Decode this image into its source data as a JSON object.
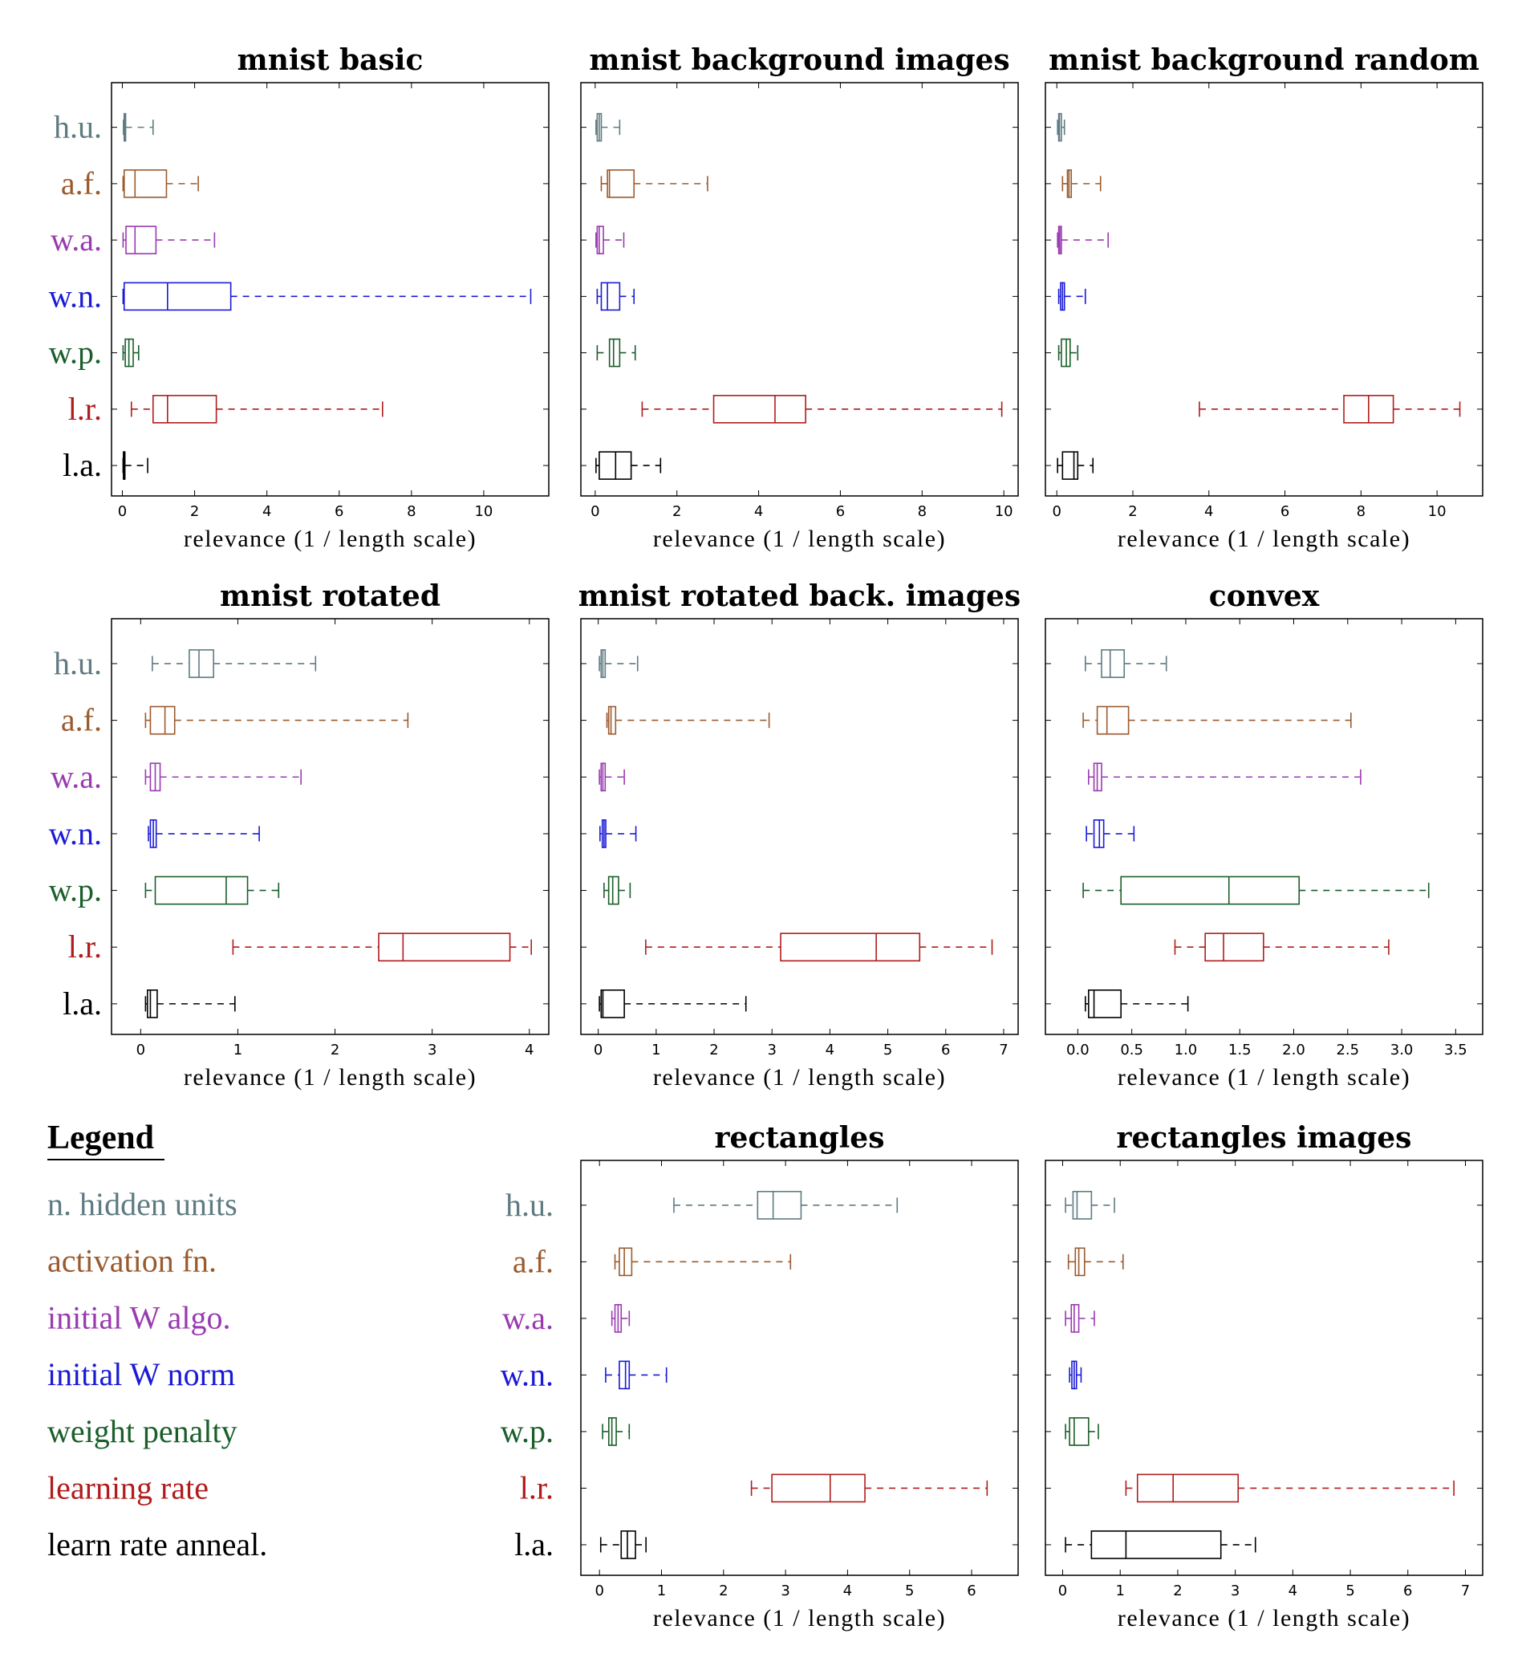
{
  "params": [
    {
      "abbr": "h.u.",
      "name": "n. hidden units",
      "color": "#5f7b82"
    },
    {
      "abbr": "a.f.",
      "name": "activation fn.",
      "color": "#9a5a2e"
    },
    {
      "abbr": "w.a.",
      "name": "initial W algo.",
      "color": "#9a3ab0"
    },
    {
      "abbr": "w.n.",
      "name": "initial W norm",
      "color": "#1a1ad6"
    },
    {
      "abbr": "w.p.",
      "name": "weight penalty",
      "color": "#1a5e2a"
    },
    {
      "abbr": "l.r.",
      "name": "learning rate",
      "color": "#b01c1c"
    },
    {
      "abbr": "l.a.",
      "name": "learn rate anneal.",
      "color": "#000000"
    }
  ],
  "legend": {
    "title": "Legend",
    "items": [
      "n. hidden units",
      "activation fn.",
      "initial W algo.",
      "initial W norm",
      "weight penalty",
      "learning rate",
      "learn rate anneal."
    ]
  },
  "chart_data": [
    {
      "type": "box",
      "title": "mnist basic",
      "xlabel": "relevance (1 / length scale)",
      "categories": [
        "h.u.",
        "a.f.",
        "w.a.",
        "w.n.",
        "w.p.",
        "l.r.",
        "l.a."
      ],
      "xlim": [
        -0.3,
        11.8
      ],
      "xticks": [
        0,
        2,
        4,
        6,
        8,
        10
      ],
      "boxes": [
        [
          0.03,
          0.05,
          0.06,
          0.09,
          0.85
        ],
        [
          0.02,
          0.05,
          0.35,
          1.22,
          2.1
        ],
        [
          0.02,
          0.1,
          0.35,
          0.93,
          2.55
        ],
        [
          0.02,
          0.05,
          1.25,
          3.0,
          11.3
        ],
        [
          0.02,
          0.08,
          0.18,
          0.3,
          0.45
        ],
        [
          0.25,
          0.85,
          1.25,
          2.6,
          7.2
        ],
        [
          0.02,
          0.03,
          0.05,
          0.07,
          0.7
        ]
      ]
    },
    {
      "type": "box",
      "title": "mnist background images",
      "xlabel": "relevance (1 / length scale)",
      "categories": [
        "h.u.",
        "a.f.",
        "w.a.",
        "w.n.",
        "w.p.",
        "l.r.",
        "l.a."
      ],
      "xlim": [
        -0.35,
        10.35
      ],
      "xticks": [
        0,
        2,
        4,
        6,
        8,
        10
      ],
      "boxes": [
        [
          0.02,
          0.05,
          0.1,
          0.15,
          0.6
        ],
        [
          0.15,
          0.3,
          0.35,
          0.95,
          2.75
        ],
        [
          0.02,
          0.05,
          0.1,
          0.2,
          0.7
        ],
        [
          0.05,
          0.15,
          0.3,
          0.6,
          0.95
        ],
        [
          0.05,
          0.35,
          0.45,
          0.6,
          0.98
        ],
        [
          1.15,
          2.9,
          4.4,
          5.15,
          9.95
        ],
        [
          0.02,
          0.1,
          0.5,
          0.88,
          1.6
        ]
      ]
    },
    {
      "type": "box",
      "title": "mnist background random",
      "xlabel": "relevance (1 / length scale)",
      "categories": [
        "h.u.",
        "a.f.",
        "w.a.",
        "w.n.",
        "w.p.",
        "l.r.",
        "l.a."
      ],
      "xlim": [
        -0.3,
        11.2
      ],
      "xticks": [
        0,
        2,
        4,
        6,
        8,
        10
      ],
      "boxes": [
        [
          0.02,
          0.05,
          0.07,
          0.12,
          0.2
        ],
        [
          0.15,
          0.28,
          0.32,
          0.38,
          1.15
        ],
        [
          0.02,
          0.05,
          0.08,
          0.12,
          1.35
        ],
        [
          0.05,
          0.1,
          0.15,
          0.2,
          0.75
        ],
        [
          0.05,
          0.12,
          0.25,
          0.35,
          0.55
        ],
        [
          3.75,
          7.55,
          8.2,
          8.85,
          10.6
        ],
        [
          0.02,
          0.15,
          0.45,
          0.55,
          0.95
        ]
      ]
    },
    {
      "type": "box",
      "title": "mnist rotated",
      "xlabel": "relevance (1 / length scale)",
      "categories": [
        "h.u.",
        "a.f.",
        "w.a.",
        "w.n.",
        "w.p.",
        "l.r.",
        "l.a."
      ],
      "xlim": [
        -0.3,
        4.2
      ],
      "xticks": [
        0,
        1,
        2,
        3,
        4
      ],
      "boxes": [
        [
          0.12,
          0.5,
          0.6,
          0.75,
          1.8
        ],
        [
          0.05,
          0.1,
          0.25,
          0.35,
          2.75
        ],
        [
          0.05,
          0.1,
          0.15,
          0.2,
          1.65
        ],
        [
          0.08,
          0.1,
          0.13,
          0.16,
          1.22
        ],
        [
          0.05,
          0.15,
          0.88,
          1.1,
          1.42
        ],
        [
          0.95,
          2.45,
          2.7,
          3.8,
          4.02
        ],
        [
          0.05,
          0.07,
          0.1,
          0.17,
          0.97
        ]
      ]
    },
    {
      "type": "box",
      "title": "mnist rotated back. images",
      "xlabel": "relevance (1 / length scale)",
      "categories": [
        "h.u.",
        "a.f.",
        "w.a.",
        "w.n.",
        "w.p.",
        "l.r.",
        "l.a."
      ],
      "xlim": [
        -0.3,
        7.25
      ],
      "xticks": [
        0,
        1,
        2,
        3,
        4,
        5,
        6,
        7
      ],
      "boxes": [
        [
          0.02,
          0.05,
          0.08,
          0.12,
          0.68
        ],
        [
          0.15,
          0.18,
          0.22,
          0.3,
          2.95
        ],
        [
          0.02,
          0.05,
          0.08,
          0.12,
          0.45
        ],
        [
          0.03,
          0.07,
          0.1,
          0.13,
          0.65
        ],
        [
          0.1,
          0.18,
          0.25,
          0.35,
          0.55
        ],
        [
          0.82,
          3.15,
          4.8,
          5.55,
          6.8
        ],
        [
          0.02,
          0.05,
          0.08,
          0.45,
          2.55
        ]
      ]
    },
    {
      "type": "box",
      "title": "convex",
      "xlabel": "relevance (1 / length scale)",
      "categories": [
        "h.u.",
        "a.f.",
        "w.a.",
        "w.n.",
        "w.p.",
        "l.r.",
        "l.a."
      ],
      "xlim": [
        -0.3,
        3.75
      ],
      "xticks": [
        0.0,
        0.5,
        1.0,
        1.5,
        2.0,
        2.5,
        3.0,
        3.5
      ],
      "boxes": [
        [
          0.07,
          0.22,
          0.3,
          0.43,
          0.82
        ],
        [
          0.05,
          0.18,
          0.27,
          0.47,
          2.53
        ],
        [
          0.1,
          0.15,
          0.18,
          0.22,
          2.62
        ],
        [
          0.08,
          0.15,
          0.2,
          0.24,
          0.52
        ],
        [
          0.05,
          0.4,
          1.4,
          2.05,
          3.25
        ],
        [
          0.9,
          1.18,
          1.35,
          1.72,
          2.88
        ],
        [
          0.07,
          0.1,
          0.15,
          0.4,
          1.02
        ]
      ]
    },
    {
      "type": "box",
      "title": "rectangles",
      "xlabel": "relevance (1 / length scale)",
      "categories": [
        "h.u.",
        "a.f.",
        "w.a.",
        "w.n.",
        "w.p.",
        "l.r.",
        "l.a."
      ],
      "xlim": [
        -0.3,
        6.75
      ],
      "xticks": [
        0,
        1,
        2,
        3,
        4,
        5,
        6
      ],
      "boxes": [
        [
          1.2,
          2.55,
          2.8,
          3.25,
          4.8
        ],
        [
          0.25,
          0.32,
          0.4,
          0.52,
          3.08
        ],
        [
          0.2,
          0.25,
          0.3,
          0.35,
          0.48
        ],
        [
          0.1,
          0.32,
          0.42,
          0.48,
          1.08
        ],
        [
          0.05,
          0.15,
          0.2,
          0.27,
          0.48
        ],
        [
          2.45,
          2.78,
          3.72,
          4.28,
          6.25
        ],
        [
          0.02,
          0.35,
          0.45,
          0.58,
          0.75
        ]
      ]
    },
    {
      "type": "box",
      "title": "rectangles images",
      "xlabel": "relevance (1 / length scale)",
      "categories": [
        "h.u.",
        "a.f.",
        "w.a.",
        "w.n.",
        "w.p.",
        "l.r.",
        "l.a."
      ],
      "xlim": [
        -0.3,
        7.3
      ],
      "xticks": [
        0,
        1,
        2,
        3,
        4,
        5,
        6,
        7
      ],
      "boxes": [
        [
          0.05,
          0.18,
          0.25,
          0.5,
          0.9
        ],
        [
          0.1,
          0.22,
          0.28,
          0.38,
          1.05
        ],
        [
          0.05,
          0.15,
          0.2,
          0.28,
          0.55
        ],
        [
          0.12,
          0.16,
          0.2,
          0.24,
          0.32
        ],
        [
          0.05,
          0.12,
          0.2,
          0.45,
          0.62
        ],
        [
          1.1,
          1.3,
          1.92,
          3.05,
          6.8
        ],
        [
          0.05,
          0.5,
          1.1,
          2.75,
          3.35
        ]
      ]
    }
  ]
}
